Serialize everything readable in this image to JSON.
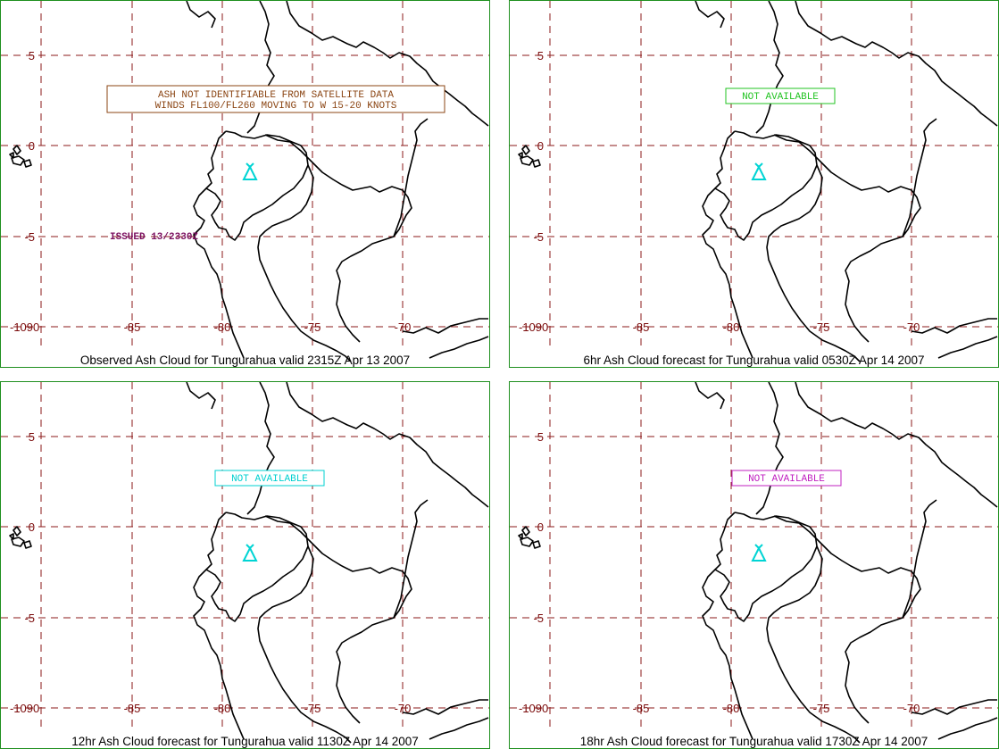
{
  "colors": {
    "border": "#1f8f1f",
    "grid": "#8b1a1a",
    "tick_text": "#7a0a0a",
    "coast": "#000000",
    "volcano": "#00d4d4",
    "observed_note": "#8b4513",
    "issued_text": "#7b1060",
    "na_6hr": "#22c322",
    "na_12hr": "#00d0d0",
    "na_18hr": "#c020c0"
  },
  "volcano_icon": "volcano-triangle-icon",
  "axes": {
    "lat_labels": [
      "5",
      "0",
      "-5",
      "-10"
    ],
    "lon_labels": [
      "-90",
      "-85",
      "-80",
      "-75",
      "-70"
    ]
  },
  "panels": [
    {
      "id": "observed",
      "caption": "Observed Ash Cloud for Tungurahua valid 2315Z Apr 13 2007",
      "note_lines": [
        "ASH NOT IDENTIFIABLE FROM SATELLITE DATA",
        "WINDS FL100/FL260 MOVING TO W 15-20 KNOTS"
      ],
      "issued": "ISSUED 13/2330Z"
    },
    {
      "id": "6hr",
      "caption": "6hr Ash Cloud forecast for Tungurahua valid 0530Z Apr 14 2007",
      "note_lines": [
        "NOT AVAILABLE"
      ]
    },
    {
      "id": "12hr",
      "caption": "12hr Ash Cloud forecast for Tungurahua valid 1130Z Apr 14 2007",
      "note_lines": [
        "NOT AVAILABLE"
      ]
    },
    {
      "id": "18hr",
      "caption": "18hr Ash Cloud forecast for Tungurahua valid 1730Z Apr 14 2007",
      "note_lines": [
        "NOT AVAILABLE"
      ]
    }
  ]
}
